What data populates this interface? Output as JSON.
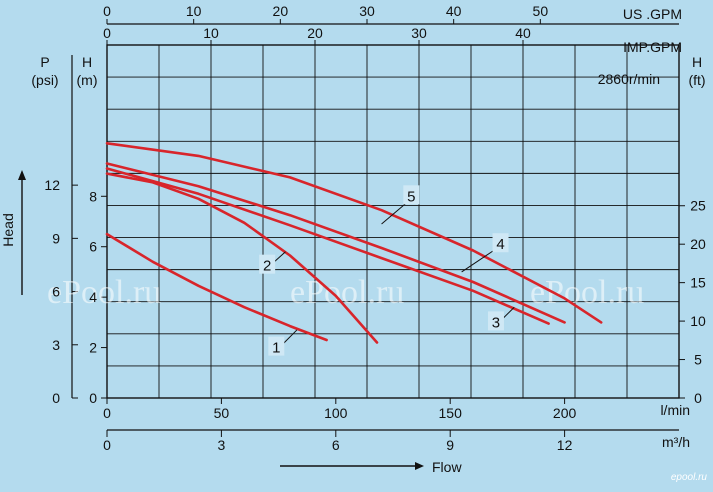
{
  "chart_data": {
    "type": "line",
    "title": "",
    "speed_note": "2860r/min",
    "watermarks": [
      "ePool.ru",
      "ePool.ru",
      "ePool.ru"
    ],
    "corner_logo": "epool.ru",
    "axes": {
      "x_lmin": {
        "label": "l/min",
        "range": [
          0,
          250
        ],
        "ticks": [
          0,
          50,
          100,
          150,
          200
        ]
      },
      "x_m3h": {
        "label": "m³/h",
        "range": [
          0,
          15
        ],
        "ticks": [
          0,
          3,
          6,
          9,
          12
        ]
      },
      "x_usgpm": {
        "label": "US .GPM",
        "range": [
          0,
          66.0
        ],
        "ticks": [
          0,
          10,
          20,
          30,
          40,
          50
        ]
      },
      "x_impgpm": {
        "label": "IMP.GPM",
        "range": [
          0,
          55.0
        ],
        "ticks": [
          0,
          10,
          20,
          30,
          40
        ]
      },
      "y_m": {
        "label": "H",
        "unit": "(m)",
        "range": [
          0,
          14.0
        ],
        "ticks": [
          0,
          2,
          4,
          6,
          8
        ]
      },
      "y_psi": {
        "label": "P",
        "unit": "(psi)",
        "range": [
          0,
          19.9
        ],
        "ticks": [
          0,
          3,
          6,
          9,
          12
        ]
      },
      "y_ft": {
        "label": "H",
        "unit": "(ft)",
        "range": [
          0,
          45.9
        ],
        "ticks": [
          0,
          5,
          10,
          15,
          20,
          25
        ]
      },
      "x_title": "Flow",
      "y_title": "Head"
    },
    "grid": true,
    "series": [
      {
        "name": "1",
        "x": [
          0,
          20,
          40,
          60,
          80,
          96
        ],
        "y": [
          6.5,
          5.4,
          4.45,
          3.6,
          2.85,
          2.3
        ]
      },
      {
        "name": "2",
        "x": [
          0,
          20,
          40,
          60,
          80,
          100,
          118
        ],
        "y": [
          8.9,
          8.55,
          7.9,
          6.95,
          5.65,
          4.05,
          2.2
        ]
      },
      {
        "name": "3",
        "x": [
          0,
          40,
          80,
          120,
          160,
          193
        ],
        "y": [
          9.1,
          8.1,
          6.85,
          5.55,
          4.25,
          2.95
        ]
      },
      {
        "name": "4",
        "x": [
          0,
          40,
          80,
          120,
          160,
          200
        ],
        "y": [
          9.3,
          8.4,
          7.25,
          5.95,
          4.6,
          3.0
        ]
      },
      {
        "name": "5",
        "x": [
          0,
          40,
          80,
          120,
          160,
          200,
          216
        ],
        "y": [
          10.1,
          9.6,
          8.75,
          7.45,
          5.85,
          3.95,
          3.0
        ]
      }
    ],
    "callouts": [
      {
        "series": "1",
        "label": "1",
        "label_at": [
          74,
          1.8
        ],
        "point_at": [
          83,
          2.7
        ]
      },
      {
        "series": "2",
        "label": "2",
        "label_at": [
          70,
          5.05
        ],
        "point_at": [
          78,
          5.8
        ]
      },
      {
        "series": "3",
        "label": "3",
        "label_at": [
          170,
          2.8
        ],
        "point_at": [
          178,
          3.6
        ]
      },
      {
        "series": "4",
        "label": "4",
        "label_at": [
          172,
          5.9
        ],
        "point_at": [
          155,
          5.0
        ]
      },
      {
        "series": "5",
        "label": "5",
        "label_at": [
          133,
          7.8
        ],
        "point_at": [
          120,
          6.9
        ]
      }
    ]
  }
}
